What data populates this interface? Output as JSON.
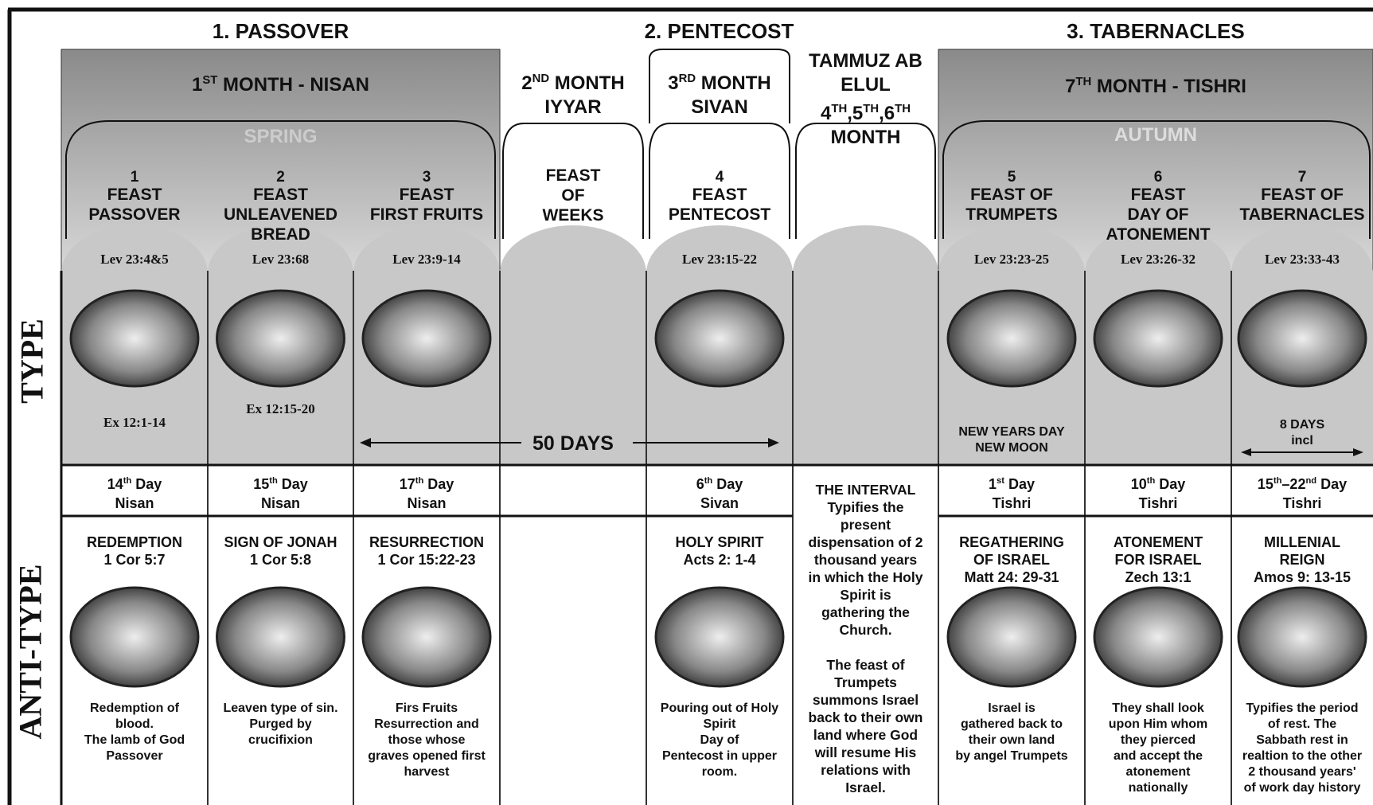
{
  "headers": [
    "1. PASSOVER",
    "2. PENTECOST",
    "3. TABERNACLES"
  ],
  "side_labels": {
    "type": "TYPE",
    "antitype": "ANTI-TYPE"
  },
  "months": [
    {
      "lines": [
        [
          {
            "text": "1"
          },
          {
            "sup": "ST"
          },
          {
            "text": " MONTH - NISAN"
          }
        ]
      ]
    },
    {
      "lines": [
        [
          {
            "text": "2"
          },
          {
            "sup": "ND"
          },
          {
            "text": " MONTH"
          }
        ],
        [
          {
            "text": "IYYAR"
          }
        ]
      ]
    },
    {
      "lines": [
        [
          {
            "text": "3"
          },
          {
            "sup": "RD"
          },
          {
            "text": " MONTH"
          }
        ],
        [
          {
            "text": "SIVAN"
          }
        ]
      ]
    },
    {
      "lines": [
        [
          {
            "text": "TAMMUZ AB"
          }
        ],
        [
          {
            "text": "ELUL"
          }
        ],
        [
          {
            "text": "4"
          },
          {
            "sup": "TH"
          },
          {
            "text": ",5"
          },
          {
            "sup": "TH"
          },
          {
            "text": ",6"
          },
          {
            "sup": "TH"
          }
        ],
        [
          {
            "text": "MONTH"
          }
        ]
      ]
    },
    {
      "lines": [
        [
          {
            "text": "7"
          },
          {
            "sup": "TH"
          },
          {
            "text": " MONTH - TISHRI"
          }
        ]
      ]
    }
  ],
  "seasons": [
    "SPRING",
    "AUTUMN"
  ],
  "fifty_days": "50 DAYS",
  "columns": [
    {
      "number": "1",
      "feast": [
        "FEAST",
        "PASSOVER"
      ],
      "lev": "Lev 23:4&5",
      "type_note": [
        "Ex 12:1-14"
      ],
      "day": [
        [
          {
            "text": "14"
          },
          {
            "sup": "th"
          },
          {
            "text": " Day"
          }
        ],
        [
          {
            "text": "Nisan"
          }
        ]
      ],
      "anti_title": [
        "REDEMPTION",
        "1 Cor 5:7"
      ],
      "anti_desc": [
        "Redemption of",
        "blood.",
        "The lamb of God",
        "Passover"
      ]
    },
    {
      "number": "2",
      "feast": [
        "FEAST",
        "UNLEAVENED",
        "BREAD"
      ],
      "lev": "Lev 23:68",
      "type_note": [
        "Ex 12:15-20"
      ],
      "day": [
        [
          {
            "text": "15"
          },
          {
            "sup": "th"
          },
          {
            "text": " Day"
          }
        ],
        [
          {
            "text": "Nisan"
          }
        ]
      ],
      "anti_title": [
        "SIGN OF JONAH",
        "1 Cor 5:8"
      ],
      "anti_desc": [
        "Leaven type of sin.",
        "Purged by",
        "crucifixion"
      ]
    },
    {
      "number": "3",
      "feast": [
        "FEAST",
        "FIRST FRUITS"
      ],
      "lev": "Lev 23:9-14",
      "day": [
        [
          {
            "text": "17"
          },
          {
            "sup": "th"
          },
          {
            "text": " Day"
          }
        ],
        [
          {
            "text": "Nisan"
          }
        ]
      ],
      "anti_title": [
        "RESURRECTION",
        "1 Cor 15:22-23"
      ],
      "anti_desc": [
        "Firs Fruits",
        "Resurrection and",
        "those whose",
        "graves opened first",
        "harvest"
      ]
    },
    {
      "feast": [
        "FEAST",
        "OF",
        "WEEKS"
      ]
    },
    {
      "number": "4",
      "feast": [
        "FEAST",
        "PENTECOST"
      ],
      "lev": "Lev 23:15-22",
      "day": [
        [
          {
            "text": "6"
          },
          {
            "sup": "th"
          },
          {
            "text": " Day"
          }
        ],
        [
          {
            "text": "Sivan"
          }
        ]
      ],
      "anti_title": [
        "HOLY SPIRIT",
        "Acts 2: 1-4"
      ],
      "anti_desc": [
        "Pouring out of Holy",
        "Spirit",
        "Day of",
        "Pentecost in upper",
        "room."
      ]
    },
    {
      "interval": [
        [
          "THE INTERVAL",
          "Typifies the",
          "present",
          "dispensation of 2",
          "thousand years",
          "in which the Holy",
          "Spirit is",
          "gathering the",
          "Church."
        ],
        [
          "The feast of",
          "Trumpets",
          "summons Israel",
          "back to their own",
          "land where God",
          "will resume His",
          "relations with",
          "Israel."
        ]
      ]
    },
    {
      "number": "5",
      "feast": [
        "FEAST OF",
        "TRUMPETS"
      ],
      "lev": "Lev 23:23-25",
      "type_note": [
        "NEW YEARS DAY",
        "NEW MOON"
      ],
      "day": [
        [
          {
            "text": "1"
          },
          {
            "sup": "st"
          },
          {
            "text": " Day"
          }
        ],
        [
          {
            "text": "Tishri"
          }
        ]
      ],
      "anti_title": [
        "REGATHERING",
        "OF ISRAEL",
        "Matt 24: 29-31"
      ],
      "anti_desc": [
        "Israel is",
        "gathered back to",
        "their own land",
        "by angel Trumpets"
      ]
    },
    {
      "number": "6",
      "feast": [
        "FEAST",
        "DAY OF",
        "ATONEMENT"
      ],
      "lev": "Lev 23:26-32",
      "day": [
        [
          {
            "text": "10"
          },
          {
            "sup": "th"
          },
          {
            "text": " Day"
          }
        ],
        [
          {
            "text": "Tishri"
          }
        ]
      ],
      "anti_title": [
        "ATONEMENT",
        "FOR ISRAEL",
        "Zech 13:1"
      ],
      "anti_desc": [
        "They shall look",
        "upon Him whom",
        "they pierced",
        "and accept the",
        "atonement",
        "nationally"
      ]
    },
    {
      "number": "7",
      "feast": [
        "FEAST OF",
        "TABERNACLES"
      ],
      "lev": "Lev 23:33-43",
      "type_note": [
        "8 DAYS",
        "incl"
      ],
      "day": [
        [
          {
            "text": "15"
          },
          {
            "sup": "th"
          },
          {
            "text": "–22"
          },
          {
            "sup": "nd"
          },
          {
            "text": " Day"
          }
        ],
        [
          {
            "text": "Tishri"
          }
        ]
      ],
      "anti_title": [
        "MILLENIAL",
        "REIGN",
        "Amos 9: 13-15"
      ],
      "anti_desc": [
        "Typifies the period",
        "of rest. The",
        "Sabbath rest in",
        "realtion to the other",
        "2 thousand years'",
        "of work day history"
      ]
    }
  ]
}
